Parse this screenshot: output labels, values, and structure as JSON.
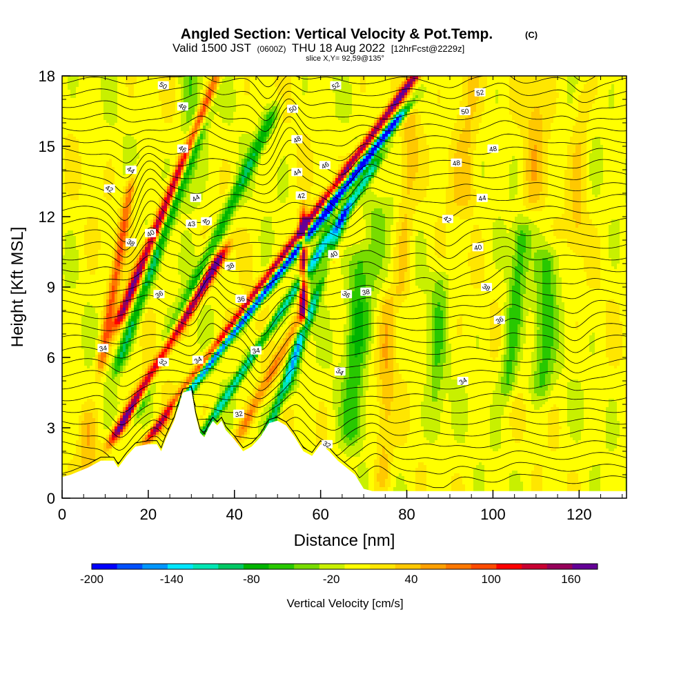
{
  "chart_data": {
    "type": "heatmap",
    "title": "Angled Section: Vertical Velocity & Pot.Temp.",
    "title_unit": "(C)",
    "subtitle_valid": "Valid 1500 JST",
    "subtitle_utc": "(0600Z)",
    "subtitle_date": "THU 18 Aug 2022",
    "subtitle_fcst": "[12hrFcst@2229z]",
    "slice_label": "slice X,Y= 92,59@135°",
    "xlabel": "Distance [nm]",
    "ylabel": "Height [Kft MSL]",
    "xlim": [
      0,
      131
    ],
    "ylim": [
      0,
      18
    ],
    "x_ticks": [
      0,
      20,
      40,
      60,
      80,
      100,
      120
    ],
    "y_ticks": [
      0,
      3,
      6,
      9,
      12,
      15,
      18
    ],
    "x_tick_labels": [
      "0",
      "20",
      "40",
      "60",
      "80",
      "100",
      "120"
    ],
    "y_tick_labels": [
      "0",
      "3",
      "6",
      "9",
      "12",
      "15",
      "18"
    ],
    "colorbar": {
      "label": "Vertical Velocity [cm/s]",
      "min": -200,
      "max": 180,
      "step": 20,
      "tick_values": [
        "-200",
        "-140",
        "-80",
        "-20",
        "40",
        "100",
        "160"
      ],
      "colors": [
        "#0000ff",
        "#0050ff",
        "#0096ff",
        "#00e6ff",
        "#00e6b4",
        "#00c864",
        "#00b400",
        "#28c800",
        "#78dc00",
        "#c8f000",
        "#ffff00",
        "#ffe600",
        "#ffc800",
        "#ffa000",
        "#ff7800",
        "#ff4b00",
        "#ff0000",
        "#c80032",
        "#96005a",
        "#640096"
      ]
    },
    "terrain_kft": [
      [
        0,
        0.9
      ],
      [
        2,
        1.0
      ],
      [
        6,
        1.3
      ],
      [
        9,
        1.6
      ],
      [
        12,
        1.6
      ],
      [
        13,
        1.3
      ],
      [
        15,
        1.8
      ],
      [
        17,
        2.2
      ],
      [
        20,
        2.3
      ],
      [
        22,
        2.3
      ],
      [
        23,
        2.0
      ],
      [
        24,
        2.5
      ],
      [
        26,
        3.3
      ],
      [
        28,
        4.5
      ],
      [
        30,
        4.6
      ],
      [
        31,
        3.5
      ],
      [
        32,
        2.8
      ],
      [
        33,
        2.6
      ],
      [
        34,
        3.0
      ],
      [
        35,
        3.3
      ],
      [
        36,
        3.1
      ],
      [
        37,
        3.3
      ],
      [
        38,
        2.9
      ],
      [
        40,
        2.5
      ],
      [
        42,
        2.0
      ],
      [
        44,
        2.2
      ],
      [
        46,
        2.6
      ],
      [
        48,
        3.2
      ],
      [
        50,
        3.3
      ],
      [
        52,
        3.1
      ],
      [
        54,
        2.6
      ],
      [
        56,
        2.0
      ],
      [
        58,
        1.8
      ],
      [
        60,
        2.3
      ],
      [
        62,
        2.0
      ],
      [
        64,
        1.6
      ],
      [
        66,
        1.3
      ],
      [
        68,
        1.0
      ],
      [
        70,
        0.4
      ],
      [
        72,
        0.3
      ],
      [
        131,
        0.3
      ]
    ],
    "theta_contour_labels": [
      {
        "text": "52",
        "x": 63.5,
        "y": 17.6
      },
      {
        "text": "52",
        "x": 97,
        "y": 17.3
      },
      {
        "text": "50",
        "x": 23.5,
        "y": 17.6
      },
      {
        "text": "50",
        "x": 53.5,
        "y": 16.6
      },
      {
        "text": "50",
        "x": 93.5,
        "y": 16.5
      },
      {
        "text": "48",
        "x": 28,
        "y": 16.7
      },
      {
        "text": "48",
        "x": 54.5,
        "y": 15.3
      },
      {
        "text": "48",
        "x": 100,
        "y": 14.9
      },
      {
        "text": "46",
        "x": 28,
        "y": 14.9
      },
      {
        "text": "46",
        "x": 61,
        "y": 14.2
      },
      {
        "text": "48",
        "x": 91.5,
        "y": 14.3
      },
      {
        "text": "44",
        "x": 16,
        "y": 14.0
      },
      {
        "text": "44",
        "x": 54.5,
        "y": 13.9
      },
      {
        "text": "44",
        "x": 97.5,
        "y": 12.8
      },
      {
        "text": "42",
        "x": 11,
        "y": 13.2
      },
      {
        "text": "44",
        "x": 31,
        "y": 12.8
      },
      {
        "text": "42",
        "x": 55.5,
        "y": 12.9
      },
      {
        "text": "42",
        "x": 89.5,
        "y": 11.9
      },
      {
        "text": "40",
        "x": 20.5,
        "y": 11.3
      },
      {
        "text": "43",
        "x": 30,
        "y": 11.7
      },
      {
        "text": "40",
        "x": 33.5,
        "y": 11.8
      },
      {
        "text": "40",
        "x": 63,
        "y": 10.4
      },
      {
        "text": "40",
        "x": 96.5,
        "y": 10.7
      },
      {
        "text": "38",
        "x": 16,
        "y": 10.9
      },
      {
        "text": "38",
        "x": 39,
        "y": 9.9
      },
      {
        "text": "38",
        "x": 70.5,
        "y": 8.8
      },
      {
        "text": "38",
        "x": 98.5,
        "y": 9.0
      },
      {
        "text": "36",
        "x": 22.5,
        "y": 8.7
      },
      {
        "text": "36",
        "x": 41.5,
        "y": 8.5
      },
      {
        "text": "36",
        "x": 66,
        "y": 8.7
      },
      {
        "text": "36",
        "x": 101.5,
        "y": 7.6
      },
      {
        "text": "34",
        "x": 9.5,
        "y": 6.4
      },
      {
        "text": "32",
        "x": 23.5,
        "y": 5.8
      },
      {
        "text": "34",
        "x": 31.5,
        "y": 5.9
      },
      {
        "text": "34",
        "x": 45,
        "y": 6.3
      },
      {
        "text": "34",
        "x": 64.5,
        "y": 5.4
      },
      {
        "text": "34",
        "x": 93,
        "y": 5.0
      },
      {
        "text": "32",
        "x": 41,
        "y": 3.6
      },
      {
        "text": "32",
        "x": 61.5,
        "y": 2.3
      }
    ]
  }
}
